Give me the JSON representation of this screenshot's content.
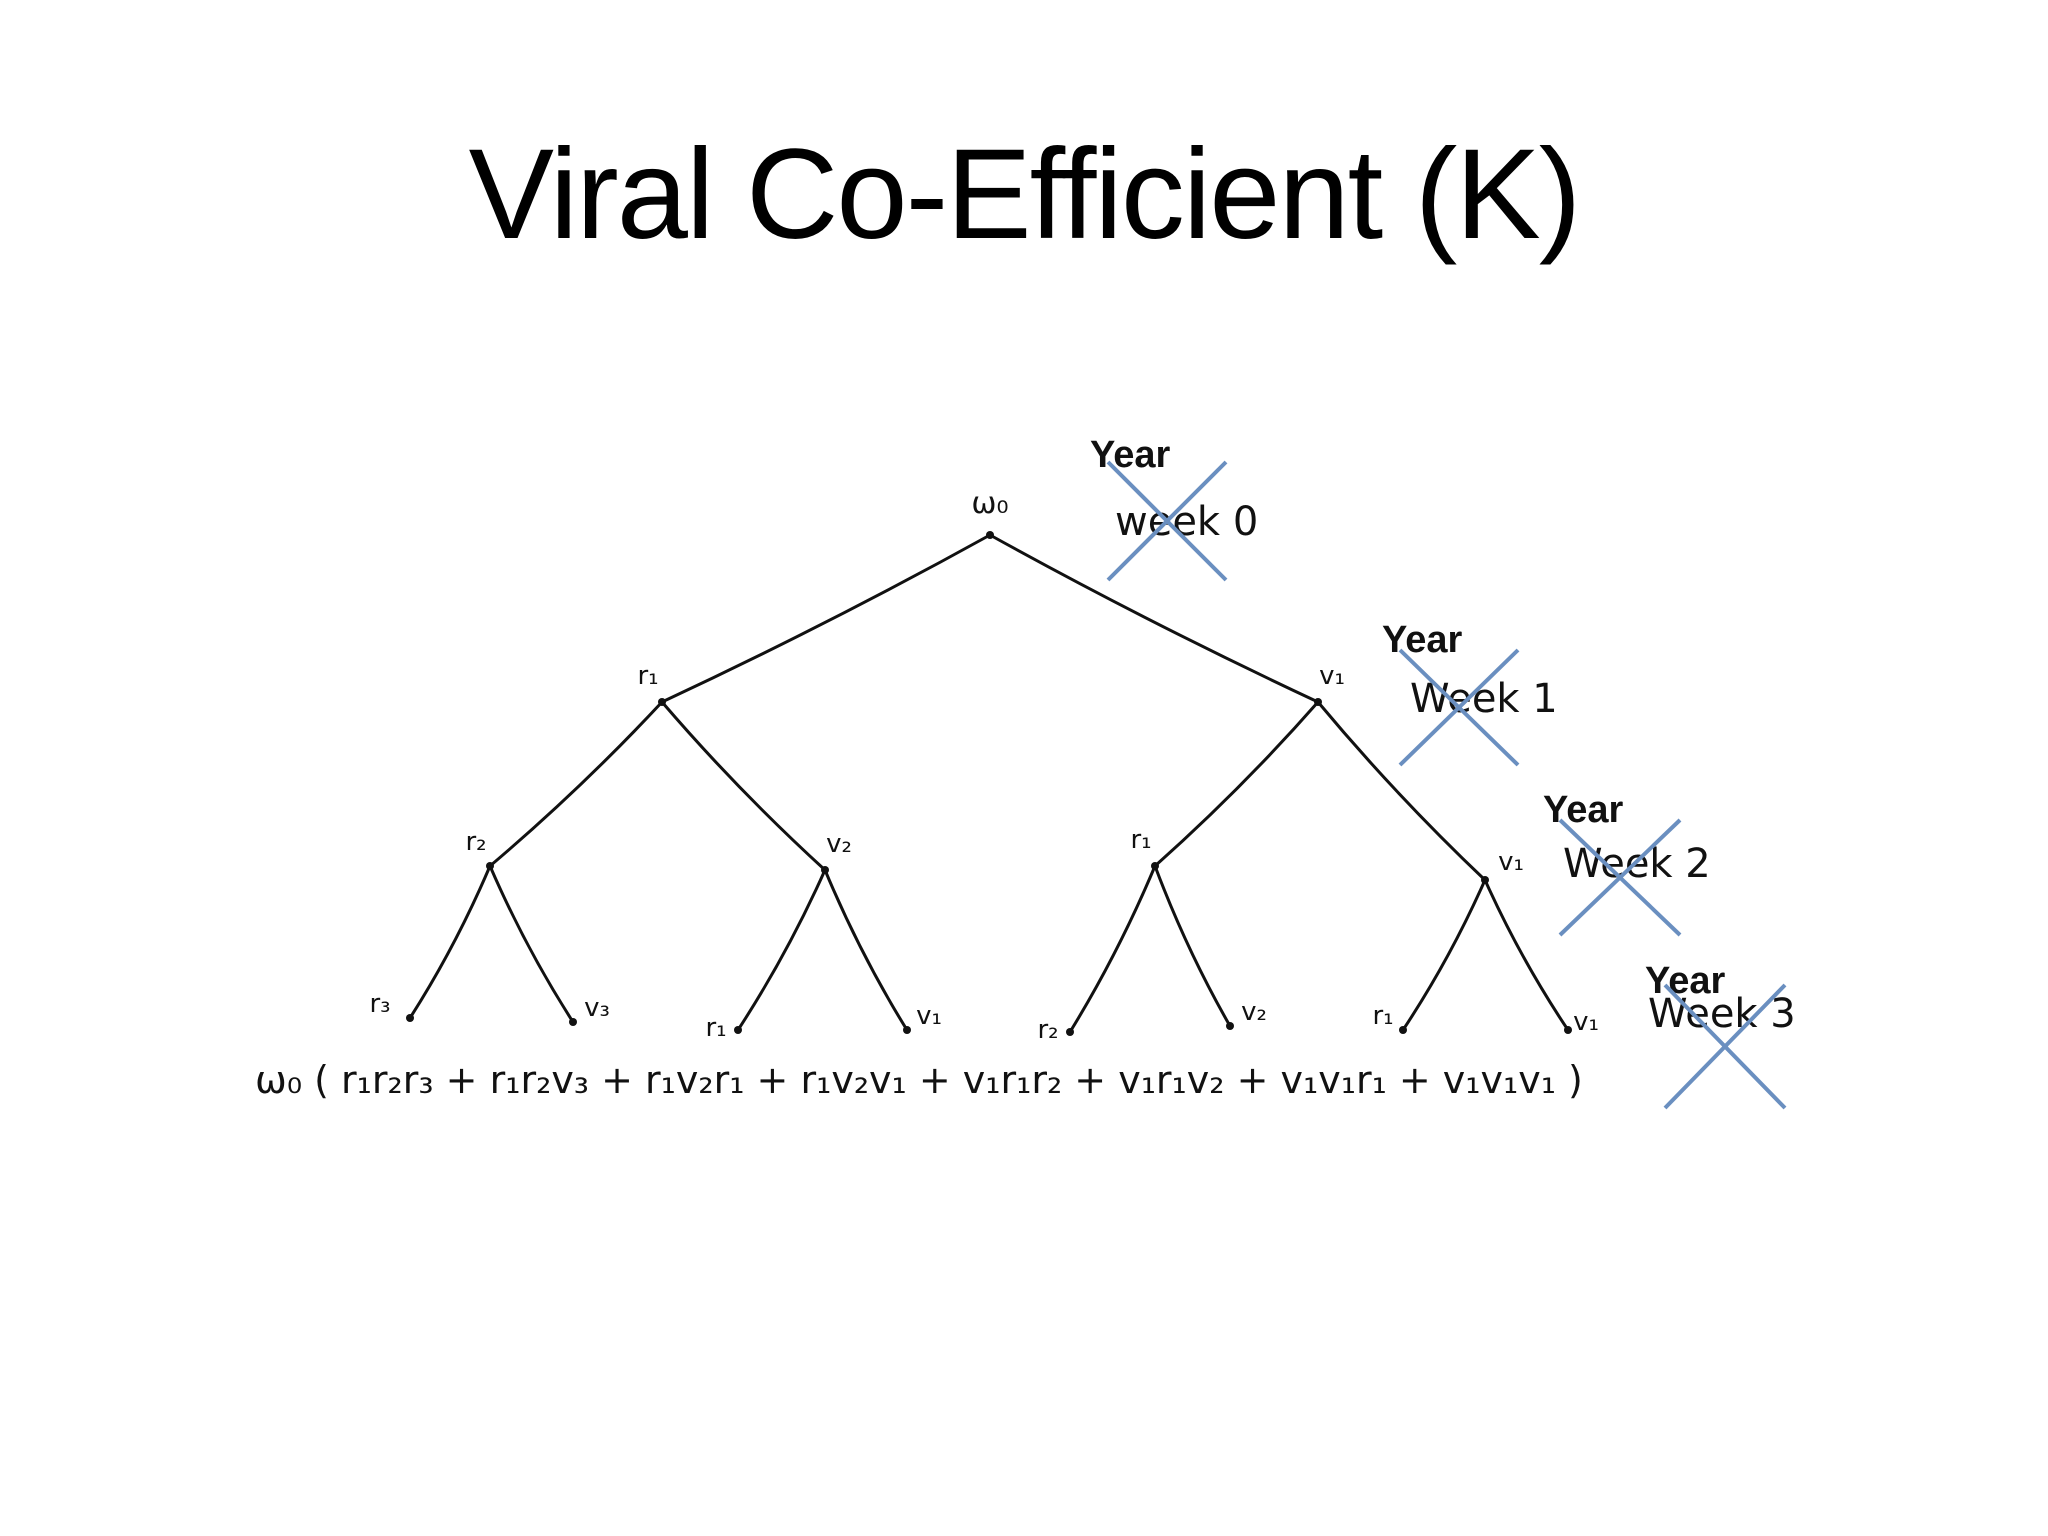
{
  "title": "Viral Co-Efficient (K)",
  "diagram": {
    "nodes": [
      {
        "id": "root",
        "label": "ω₀"
      },
      {
        "id": "l1",
        "label": "r₁"
      },
      {
        "id": "r1",
        "label": "v₁"
      },
      {
        "id": "l1l",
        "label": "r₂"
      },
      {
        "id": "l1r",
        "label": "v₂"
      },
      {
        "id": "r1l",
        "label": "r₁"
      },
      {
        "id": "r1r",
        "label": "v₁"
      },
      {
        "id": "leaf1",
        "label": "r₃"
      },
      {
        "id": "leaf2",
        "label": "v₃"
      },
      {
        "id": "leaf3",
        "label": "r₁"
      },
      {
        "id": "leaf4",
        "label": "v₁"
      },
      {
        "id": "leaf5",
        "label": "r₂"
      },
      {
        "id": "leaf6",
        "label": "v₂"
      },
      {
        "id": "leaf7",
        "label": "r₁"
      },
      {
        "id": "leaf8",
        "label": "v₁"
      }
    ],
    "formula": "ω₀ ( r₁r₂r₃ + r₁r₂v₃ + r₁v₂r₁ + r₁v₂v₁ + v₁r₁r₂ + v₁r₁v₂ + v₁v₁r₁ + v₁v₁v₁ )",
    "levels": [
      {
        "new_label": "Year",
        "old_label": "week 0"
      },
      {
        "new_label": "Year",
        "old_label": "Week 1"
      },
      {
        "new_label": "Year",
        "old_label": "Week 2"
      },
      {
        "new_label": "Year",
        "old_label": "Week 3"
      }
    ],
    "cross_color": "#6a8fc0"
  }
}
